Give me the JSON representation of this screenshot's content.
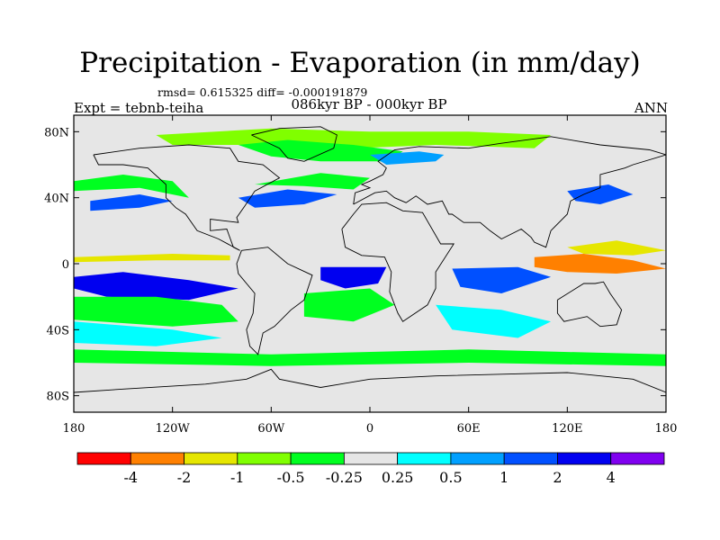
{
  "chart_data": {
    "type": "heatmap",
    "title": "Precipitation - Evaporation (in mm/day)",
    "stats_line": "rmsd= 0.615325 diff= -0.000191879",
    "experiment": "Expt = tebnb-teiha",
    "period": "086kyr BP - 000kyr BP",
    "season": "ANN",
    "x_ticks": [
      "180",
      "120W",
      "60W",
      "0",
      "60E",
      "120E",
      "180"
    ],
    "x_values": [
      -180,
      -120,
      -60,
      0,
      60,
      120,
      180
    ],
    "y_ticks": [
      "80N",
      "40N",
      "0",
      "40S",
      "80S"
    ],
    "y_values": [
      80,
      40,
      0,
      -40,
      -80
    ],
    "xlim": [
      -180,
      180
    ],
    "ylim": [
      -90,
      90
    ],
    "colorbar": {
      "labels": [
        "-4",
        "-2",
        "-1",
        "-0.5",
        "-0.25",
        "0.25",
        "0.5",
        "1",
        "2",
        "4"
      ],
      "colors": [
        "#ff0000",
        "#ff8000",
        "#e6e600",
        "#80ff00",
        "#00ff20",
        "#e6e6e6",
        "#00ffff",
        "#00a0ff",
        "#0050ff",
        "#0000f0",
        "#8000f0"
      ]
    },
    "regions": [
      {
        "name": "arctic-wet",
        "cat": 3,
        "pts": [
          [
            -130,
            78
          ],
          [
            -60,
            82
          ],
          [
            0,
            80
          ],
          [
            60,
            80
          ],
          [
            110,
            78
          ],
          [
            100,
            70
          ],
          [
            40,
            72
          ],
          [
            -10,
            70
          ],
          [
            -60,
            72
          ],
          [
            -120,
            72
          ]
        ]
      },
      {
        "name": "n-atlantic-wet",
        "cat": 4,
        "pts": [
          [
            -80,
            72
          ],
          [
            -50,
            75
          ],
          [
            -10,
            72
          ],
          [
            20,
            68
          ],
          [
            10,
            62
          ],
          [
            -30,
            62
          ],
          [
            -60,
            65
          ]
        ]
      },
      {
        "name": "europe-dry",
        "cat": 7,
        "pts": [
          [
            0,
            66
          ],
          [
            30,
            68
          ],
          [
            45,
            66
          ],
          [
            40,
            62
          ],
          [
            10,
            60
          ]
        ]
      },
      {
        "name": "n-pacific-dry",
        "cat": 8,
        "pts": [
          [
            -170,
            38
          ],
          [
            -140,
            42
          ],
          [
            -120,
            38
          ],
          [
            -140,
            34
          ],
          [
            -170,
            32
          ]
        ]
      },
      {
        "name": "n-pacific-green",
        "cat": 4,
        "pts": [
          [
            -180,
            50
          ],
          [
            -150,
            54
          ],
          [
            -120,
            50
          ],
          [
            -110,
            40
          ],
          [
            -140,
            46
          ],
          [
            -180,
            44
          ]
        ]
      },
      {
        "name": "w-atlantic-dry",
        "cat": 8,
        "pts": [
          [
            -80,
            40
          ],
          [
            -50,
            45
          ],
          [
            -20,
            42
          ],
          [
            -40,
            36
          ],
          [
            -70,
            34
          ]
        ]
      },
      {
        "name": "atlantic-wet",
        "cat": 4,
        "pts": [
          [
            -70,
            48
          ],
          [
            -30,
            55
          ],
          [
            0,
            52
          ],
          [
            -10,
            45
          ],
          [
            -40,
            47
          ]
        ]
      },
      {
        "name": "e-asia-dry",
        "cat": 8,
        "pts": [
          [
            120,
            44
          ],
          [
            145,
            48
          ],
          [
            160,
            42
          ],
          [
            140,
            36
          ],
          [
            125,
            38
          ]
        ]
      },
      {
        "name": "itcz-pacific",
        "cat": 2,
        "pts": [
          [
            -180,
            4
          ],
          [
            -120,
            6
          ],
          [
            -85,
            5
          ],
          [
            -85,
            2
          ],
          [
            -130,
            2
          ],
          [
            -180,
            1
          ]
        ]
      },
      {
        "name": "s-pacific-dry",
        "cat": 9,
        "pts": [
          [
            -180,
            -8
          ],
          [
            -150,
            -5
          ],
          [
            -110,
            -10
          ],
          [
            -80,
            -15
          ],
          [
            -110,
            -22
          ],
          [
            -160,
            -20
          ],
          [
            -180,
            -15
          ]
        ]
      },
      {
        "name": "s-pacific-green",
        "cat": 4,
        "pts": [
          [
            -180,
            -20
          ],
          [
            -130,
            -20
          ],
          [
            -90,
            -25
          ],
          [
            -80,
            -35
          ],
          [
            -120,
            -38
          ],
          [
            -180,
            -34
          ]
        ]
      },
      {
        "name": "s-pacific-cyan",
        "cat": 6,
        "pts": [
          [
            -180,
            -35
          ],
          [
            -120,
            -40
          ],
          [
            -90,
            -45
          ],
          [
            -130,
            -50
          ],
          [
            -180,
            -48
          ]
        ]
      },
      {
        "name": "s-atlantic-dry",
        "cat": 9,
        "pts": [
          [
            -30,
            -2
          ],
          [
            10,
            -2
          ],
          [
            5,
            -12
          ],
          [
            -15,
            -15
          ],
          [
            -30,
            -10
          ]
        ]
      },
      {
        "name": "s-atlantic-green",
        "cat": 4,
        "pts": [
          [
            -40,
            -18
          ],
          [
            0,
            -15
          ],
          [
            15,
            -25
          ],
          [
            -10,
            -35
          ],
          [
            -40,
            -32
          ]
        ]
      },
      {
        "name": "indian-dry",
        "cat": 8,
        "pts": [
          [
            50,
            -3
          ],
          [
            90,
            -2
          ],
          [
            110,
            -8
          ],
          [
            80,
            -18
          ],
          [
            55,
            -14
          ]
        ]
      },
      {
        "name": "indian-cyan",
        "cat": 6,
        "pts": [
          [
            40,
            -25
          ],
          [
            80,
            -28
          ],
          [
            110,
            -35
          ],
          [
            90,
            -45
          ],
          [
            50,
            -40
          ]
        ]
      },
      {
        "name": "indonesia-wet",
        "cat": 1,
        "pts": [
          [
            100,
            4
          ],
          [
            130,
            6
          ],
          [
            160,
            2
          ],
          [
            180,
            -3
          ],
          [
            150,
            -6
          ],
          [
            120,
            -5
          ],
          [
            100,
            -2
          ]
        ]
      },
      {
        "name": "w-pacific-yellow",
        "cat": 2,
        "pts": [
          [
            120,
            10
          ],
          [
            150,
            14
          ],
          [
            180,
            8
          ],
          [
            160,
            5
          ],
          [
            130,
            6
          ]
        ]
      },
      {
        "name": "sh-green-band",
        "cat": 4,
        "pts": [
          [
            -180,
            -52
          ],
          [
            -60,
            -55
          ],
          [
            60,
            -52
          ],
          [
            180,
            -55
          ],
          [
            180,
            -62
          ],
          [
            60,
            -60
          ],
          [
            -60,
            -62
          ],
          [
            -180,
            -60
          ]
        ]
      }
    ],
    "coastlines": [
      {
        "name": "north-america",
        "pts": [
          [
            -168,
            66
          ],
          [
            -140,
            70
          ],
          [
            -110,
            72
          ],
          [
            -85,
            70
          ],
          [
            -80,
            62
          ],
          [
            -65,
            60
          ],
          [
            -55,
            52
          ],
          [
            -70,
            44
          ],
          [
            -76,
            35
          ],
          [
            -81,
            28
          ],
          [
            -80,
            25
          ],
          [
            -97,
            27
          ],
          [
            -97,
            20
          ],
          [
            -87,
            21
          ],
          [
            -83,
            10
          ],
          [
            -79,
            8
          ],
          [
            -92,
            15
          ],
          [
            -105,
            20
          ],
          [
            -112,
            30
          ],
          [
            -118,
            34
          ],
          [
            -124,
            40
          ],
          [
            -124,
            48
          ],
          [
            -135,
            58
          ],
          [
            -150,
            60
          ],
          [
            -165,
            60
          ],
          [
            -168,
            66
          ]
        ]
      },
      {
        "name": "greenland",
        "pts": [
          [
            -72,
            78
          ],
          [
            -55,
            82
          ],
          [
            -30,
            83
          ],
          [
            -20,
            78
          ],
          [
            -22,
            70
          ],
          [
            -40,
            62
          ],
          [
            -50,
            64
          ],
          [
            -55,
            70
          ],
          [
            -72,
            78
          ]
        ]
      },
      {
        "name": "south-america",
        "pts": [
          [
            -78,
            8
          ],
          [
            -62,
            10
          ],
          [
            -50,
            0
          ],
          [
            -35,
            -7
          ],
          [
            -40,
            -22
          ],
          [
            -48,
            -28
          ],
          [
            -58,
            -38
          ],
          [
            -65,
            -42
          ],
          [
            -68,
            -55
          ],
          [
            -73,
            -50
          ],
          [
            -75,
            -40
          ],
          [
            -71,
            -30
          ],
          [
            -70,
            -18
          ],
          [
            -80,
            -6
          ],
          [
            -81,
            0
          ],
          [
            -78,
            8
          ]
        ]
      },
      {
        "name": "eurasia",
        "pts": [
          [
            -10,
            36
          ],
          [
            -9,
            43
          ],
          [
            0,
            46
          ],
          [
            -5,
            48
          ],
          [
            0,
            50
          ],
          [
            8,
            54
          ],
          [
            10,
            58
          ],
          [
            5,
            62
          ],
          [
            15,
            69
          ],
          [
            30,
            71
          ],
          [
            60,
            70
          ],
          [
            80,
            73
          ],
          [
            110,
            77
          ],
          [
            140,
            72
          ],
          [
            170,
            69
          ],
          [
            180,
            66
          ],
          [
            160,
            60
          ],
          [
            155,
            58
          ],
          [
            140,
            54
          ],
          [
            140,
            46
          ],
          [
            130,
            42
          ],
          [
            122,
            38
          ],
          [
            120,
            30
          ],
          [
            110,
            20
          ],
          [
            107,
            10
          ],
          [
            100,
            13
          ],
          [
            98,
            16
          ],
          [
            92,
            21
          ],
          [
            80,
            15
          ],
          [
            73,
            20
          ],
          [
            67,
            25
          ],
          [
            57,
            25
          ],
          [
            50,
            30
          ],
          [
            48,
            30
          ],
          [
            44,
            38
          ],
          [
            35,
            36
          ],
          [
            28,
            41
          ],
          [
            22,
            37
          ],
          [
            15,
            40
          ],
          [
            10,
            44
          ],
          [
            3,
            43
          ],
          [
            -10,
            36
          ]
        ]
      },
      {
        "name": "africa",
        "pts": [
          [
            -17,
            21
          ],
          [
            -10,
            30
          ],
          [
            -5,
            36
          ],
          [
            10,
            37
          ],
          [
            20,
            32
          ],
          [
            32,
            31
          ],
          [
            43,
            12
          ],
          [
            51,
            12
          ],
          [
            40,
            -5
          ],
          [
            40,
            -15
          ],
          [
            35,
            -25
          ],
          [
            20,
            -35
          ],
          [
            17,
            -30
          ],
          [
            12,
            -17
          ],
          [
            13,
            -5
          ],
          [
            9,
            4
          ],
          [
            -5,
            5
          ],
          [
            -15,
            10
          ],
          [
            -17,
            21
          ]
        ]
      },
      {
        "name": "australia",
        "pts": [
          [
            114,
            -22
          ],
          [
            130,
            -12
          ],
          [
            137,
            -12
          ],
          [
            142,
            -11
          ],
          [
            146,
            -18
          ],
          [
            153,
            -28
          ],
          [
            150,
            -37
          ],
          [
            140,
            -38
          ],
          [
            132,
            -32
          ],
          [
            118,
            -35
          ],
          [
            114,
            -30
          ],
          [
            114,
            -22
          ]
        ]
      },
      {
        "name": "antarctica",
        "pts": [
          [
            -180,
            -78
          ],
          [
            -150,
            -76
          ],
          [
            -100,
            -73
          ],
          [
            -75,
            -70
          ],
          [
            -60,
            -64
          ],
          [
            -55,
            -70
          ],
          [
            -30,
            -75
          ],
          [
            0,
            -70
          ],
          [
            40,
            -68
          ],
          [
            80,
            -67
          ],
          [
            120,
            -66
          ],
          [
            160,
            -70
          ],
          [
            180,
            -78
          ]
        ]
      }
    ]
  }
}
